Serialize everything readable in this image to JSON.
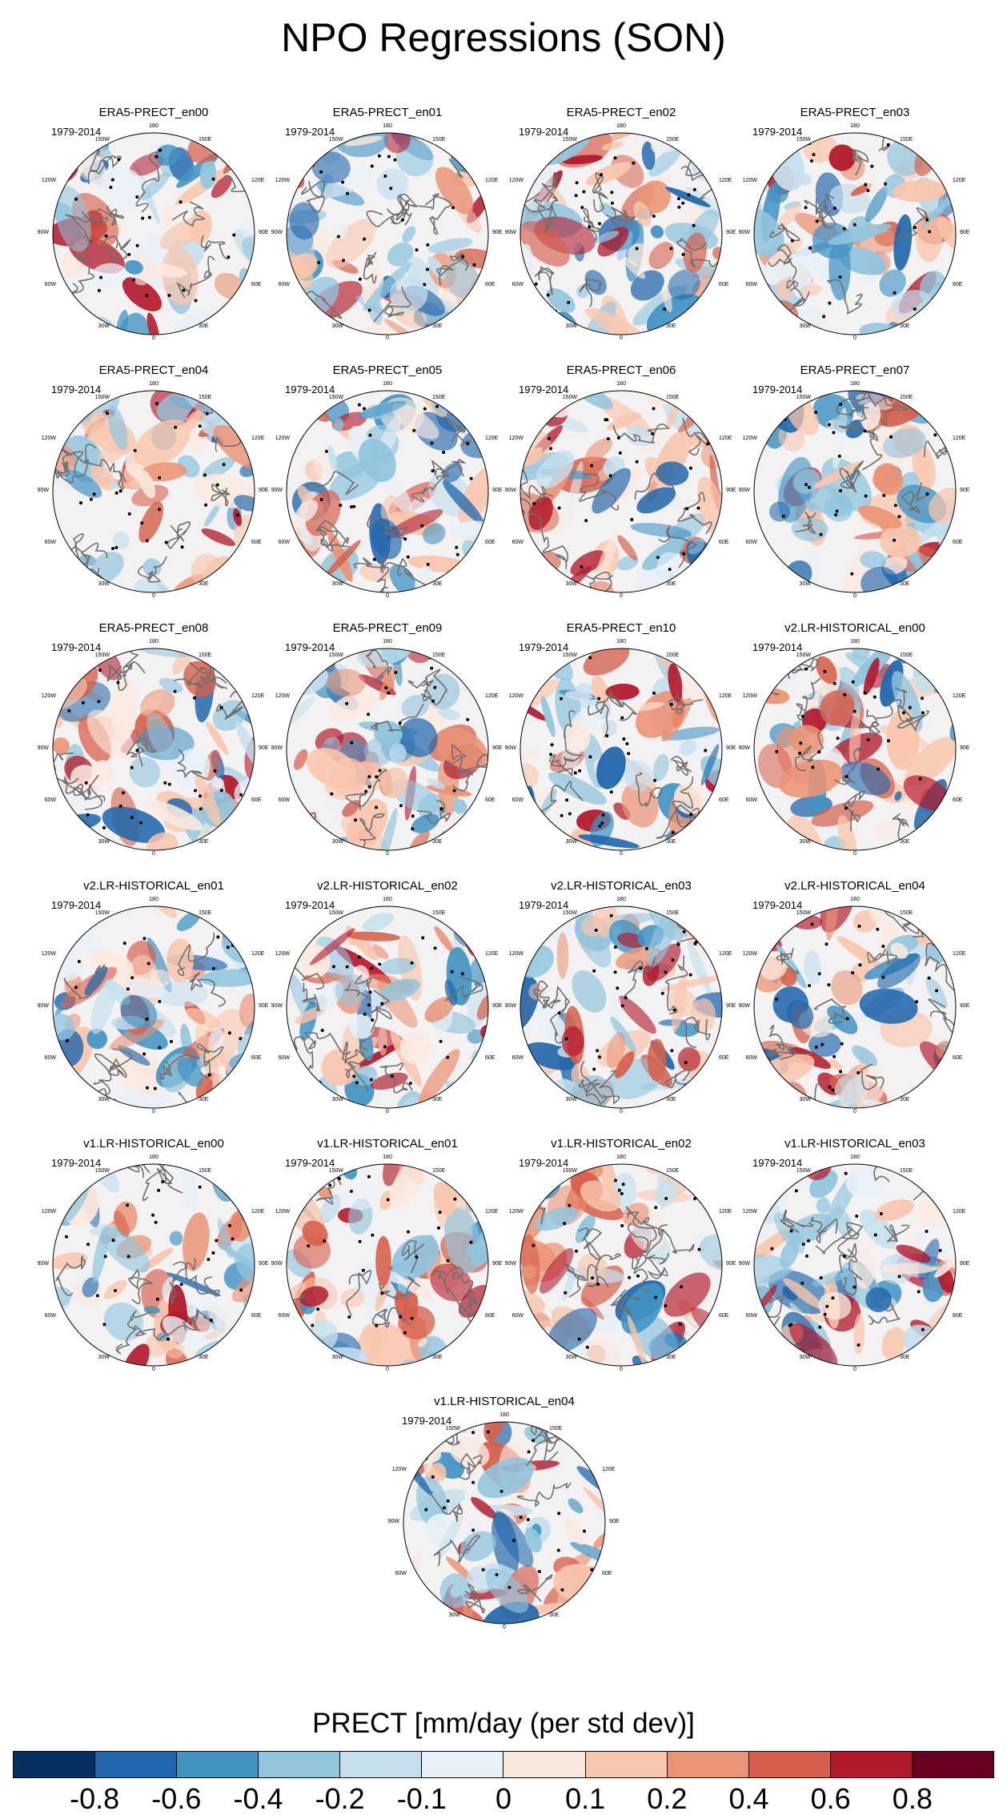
{
  "title": "NPO Regressions (SON)",
  "period": "1979-2014",
  "lon_labels": {
    "n": "180",
    "nw": "150W",
    "ne": "150E",
    "w1": "120W",
    "e1": "120E",
    "w": "90W",
    "e": "90E",
    "w2": "60W",
    "e2": "60E",
    "sw": "30W",
    "se": "30E",
    "s": "0"
  },
  "panels": [
    {
      "name": "ERA5-PRECT_en00"
    },
    {
      "name": "ERA5-PRECT_en01"
    },
    {
      "name": "ERA5-PRECT_en02"
    },
    {
      "name": "ERA5-PRECT_en03"
    },
    {
      "name": "ERA5-PRECT_en04"
    },
    {
      "name": "ERA5-PRECT_en05"
    },
    {
      "name": "ERA5-PRECT_en06"
    },
    {
      "name": "ERA5-PRECT_en07"
    },
    {
      "name": "ERA5-PRECT_en08"
    },
    {
      "name": "ERA5-PRECT_en09"
    },
    {
      "name": "ERA5-PRECT_en10"
    },
    {
      "name": "v2.LR-HISTORICAL_en00"
    },
    {
      "name": "v2.LR-HISTORICAL_en01"
    },
    {
      "name": "v2.LR-HISTORICAL_en02"
    },
    {
      "name": "v2.LR-HISTORICAL_en03"
    },
    {
      "name": "v2.LR-HISTORICAL_en04"
    },
    {
      "name": "v1.LR-HISTORICAL_en00"
    },
    {
      "name": "v1.LR-HISTORICAL_en01"
    },
    {
      "name": "v1.LR-HISTORICAL_en02"
    },
    {
      "name": "v1.LR-HISTORICAL_en03"
    },
    {
      "name": "v1.LR-HISTORICAL_en04"
    }
  ],
  "colorbar": {
    "label": "PRECT [mm/day (per std dev)]",
    "colors": [
      "#053061",
      "#2166ac",
      "#4393c3",
      "#92c5de",
      "#c5dfee",
      "#e8f0f7",
      "#fbe9e0",
      "#f9c6ad",
      "#eb9375",
      "#d6604d",
      "#b2182b",
      "#67001f"
    ],
    "ticks": [
      "-0.8",
      "-0.6",
      "-0.4",
      "-0.2",
      "-0.1",
      "0",
      "0.1",
      "0.2",
      "0.4",
      "0.6",
      "0.8"
    ]
  }
}
